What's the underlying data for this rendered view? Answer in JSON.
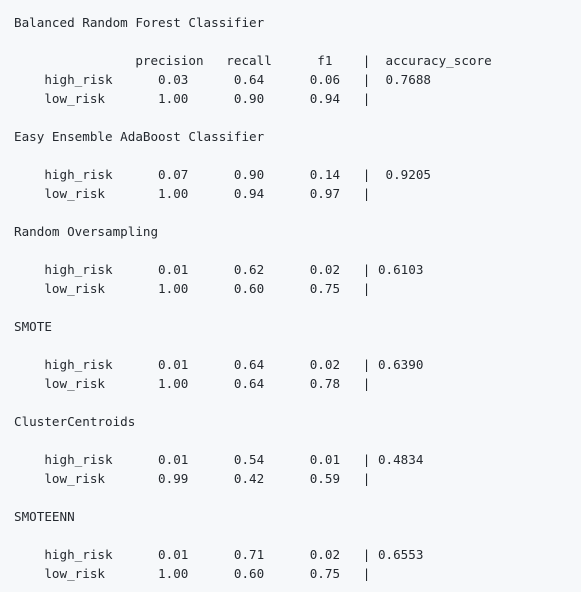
{
  "lines": [
    "Balanced Random Forest Classifier",
    "                precision   recall      f1    |  accuracy_score",
    "    high_risk      0.03      0.64      0.06   |  0.7688",
    "    low_risk       1.00      0.90      0.94   |",
    "Easy Ensemble AdaBoost Classifier",
    "    high_risk      0.07      0.90      0.14   |  0.9205",
    "    low_risk       1.00      0.94      0.97   |",
    "Random Oversampling",
    "    high_risk      0.01      0.62      0.02   | 0.6103",
    "    low_risk       1.00      0.60      0.75   |",
    "SMOTE",
    "    high_risk      0.01      0.64      0.02   | 0.6390",
    "    low_risk       1.00      0.64      0.78   |",
    "ClusterCentroids",
    "    high_risk      0.01      0.54      0.01   | 0.4834",
    "    low_risk       0.99      0.42      0.59   |",
    "SMOTEENN",
    "    high_risk      0.01      0.71      0.02   | 0.6553",
    "    low_risk       1.00      0.60      0.75   |"
  ]
}
